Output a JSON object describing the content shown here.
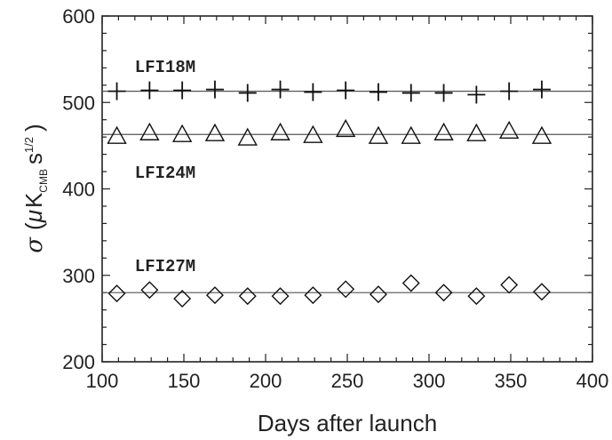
{
  "chart_data": {
    "type": "scatter",
    "xlabel": "Days after launch",
    "ylabel": {
      "sigma": "σ",
      "open": "(",
      "mu": "μ",
      "k": "K",
      "k_sub": "CMB",
      "s": "s",
      "s_sup": "1/2",
      "close": ")"
    },
    "xlim": [
      100,
      400
    ],
    "ylim": [
      200,
      600
    ],
    "xticks": [
      100,
      150,
      200,
      250,
      300,
      350,
      400
    ],
    "yticks": [
      200,
      300,
      400,
      500,
      600
    ],
    "grid": false,
    "series": [
      {
        "name": "LFI18M",
        "marker": "plus",
        "fit": 513,
        "label_at": [
          120,
          535
        ],
        "x": [
          109,
          129,
          149,
          169,
          189,
          209,
          229,
          249,
          269,
          289,
          309,
          329,
          349,
          369
        ],
        "y": [
          513,
          514,
          514,
          515,
          511,
          515,
          512,
          514,
          512,
          511,
          511,
          509,
          513,
          515
        ]
      },
      {
        "name": "LFI24M",
        "marker": "triangle",
        "fit": 463,
        "label_at": [
          120,
          413
        ],
        "x": [
          109,
          129,
          149,
          169,
          189,
          209,
          229,
          249,
          269,
          289,
          309,
          329,
          349,
          369
        ],
        "y": [
          460,
          464,
          462,
          463,
          458,
          464,
          461,
          468,
          460,
          460,
          464,
          463,
          466,
          460
        ]
      },
      {
        "name": "LFI27M",
        "marker": "diamond",
        "fit": 280,
        "label_at": [
          120,
          305
        ],
        "x": [
          109,
          129,
          149,
          169,
          189,
          209,
          229,
          249,
          269,
          289,
          309,
          329,
          349,
          369
        ],
        "y": [
          279,
          283,
          273,
          277,
          276,
          276,
          277,
          284,
          278,
          291,
          280,
          276,
          289,
          281
        ]
      }
    ]
  }
}
